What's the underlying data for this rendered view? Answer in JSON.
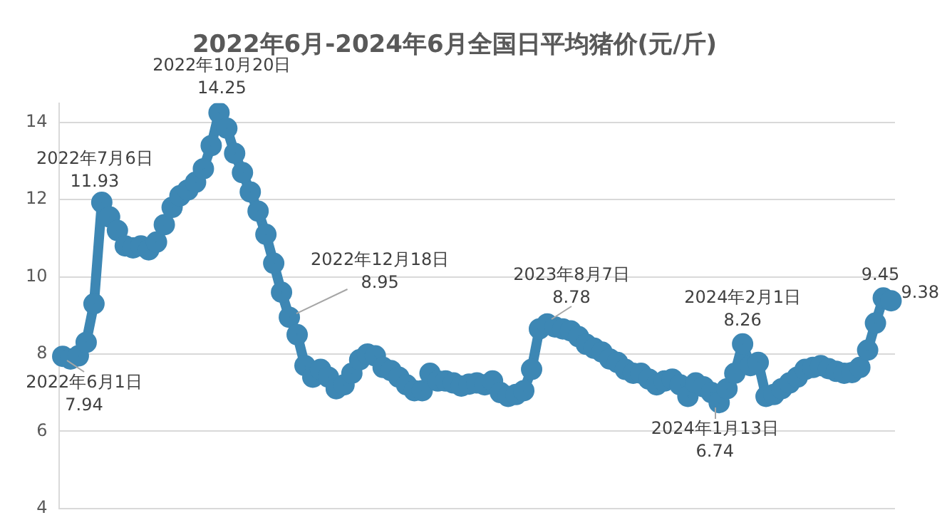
{
  "chart_data": {
    "type": "line",
    "title": "2022年6月-2024年6月全国日平均猪价(元/斤)",
    "categories": [
      null,
      null,
      null,
      null,
      null,
      null,
      null,
      null,
      null,
      null,
      null,
      null,
      null,
      null,
      null,
      null,
      null,
      null,
      null,
      null,
      null,
      null,
      null,
      null,
      null,
      null,
      null,
      null,
      null,
      null,
      null,
      null,
      null,
      null,
      null,
      null,
      null,
      null,
      null,
      null,
      null,
      null,
      null,
      null,
      null,
      null,
      null,
      null,
      null,
      null,
      null,
      null,
      null,
      null,
      null,
      null,
      null,
      null,
      null,
      null,
      null,
      null,
      null,
      null,
      null,
      null,
      null,
      null,
      null,
      null,
      null,
      null,
      null,
      null,
      null,
      null,
      null,
      null,
      null,
      null,
      null,
      null,
      null,
      null,
      null,
      null,
      null,
      null,
      null,
      null,
      null,
      null,
      null,
      null,
      null,
      null,
      null,
      null,
      null,
      null,
      null,
      null,
      null,
      null,
      null,
      null,
      null
    ],
    "series": [
      {
        "color": "#3d87b4",
        "values": [
          7.94,
          7.87,
          7.95,
          8.3,
          9.3,
          11.93,
          11.55,
          11.2,
          10.8,
          10.75,
          10.8,
          10.7,
          10.9,
          11.35,
          11.8,
          12.1,
          12.25,
          12.45,
          12.8,
          13.4,
          14.25,
          13.85,
          13.2,
          12.7,
          12.2,
          11.7,
          11.1,
          10.35,
          9.6,
          8.95,
          8.5,
          7.7,
          7.4,
          7.6,
          7.4,
          7.1,
          7.2,
          7.5,
          7.85,
          8.0,
          7.95,
          7.65,
          7.57,
          7.4,
          7.2,
          7.05,
          7.05,
          7.5,
          7.3,
          7.3,
          7.25,
          7.17,
          7.22,
          7.25,
          7.2,
          7.3,
          7.0,
          6.9,
          6.95,
          7.05,
          7.6,
          8.65,
          8.78,
          8.7,
          8.65,
          8.6,
          8.45,
          8.25,
          8.15,
          8.05,
          7.87,
          7.78,
          7.6,
          7.5,
          7.5,
          7.35,
          7.2,
          7.3,
          7.35,
          7.2,
          6.9,
          7.25,
          7.15,
          7.0,
          6.74,
          7.1,
          7.5,
          8.26,
          7.7,
          7.78,
          6.9,
          6.95,
          7.1,
          7.25,
          7.4,
          7.6,
          7.65,
          7.7,
          7.62,
          7.55,
          7.5,
          7.52,
          7.65,
          8.1,
          8.8,
          9.45,
          9.38
        ]
      }
    ],
    "ylim": [
      4,
      14.5
    ],
    "yticks": [
      4,
      6,
      8,
      10,
      12,
      14
    ],
    "grid": "y",
    "marker": "circle",
    "tick_labels": "y",
    "annotations": [
      {
        "text": "2022年6月1日\n7.94",
        "y": 7.94
      },
      {
        "text": "2022年7月6日\n11.93",
        "y": 11.93
      },
      {
        "text": "2022年10月20日\n14.25",
        "y": 14.25
      },
      "2022年12月18日\n8.95",
      {
        "text": "2023年8月7日\n8.78",
        "y": 8.78
      },
      {
        "text": "2024年1月13日\n6.74",
        "y": 6.74
      },
      {
        "text": "2024年2月1日\n8.26",
        "y": 8.26
      },
      {
        "text": "9.45",
        "y": 9.45
      },
      "9.38"
    ]
  }
}
